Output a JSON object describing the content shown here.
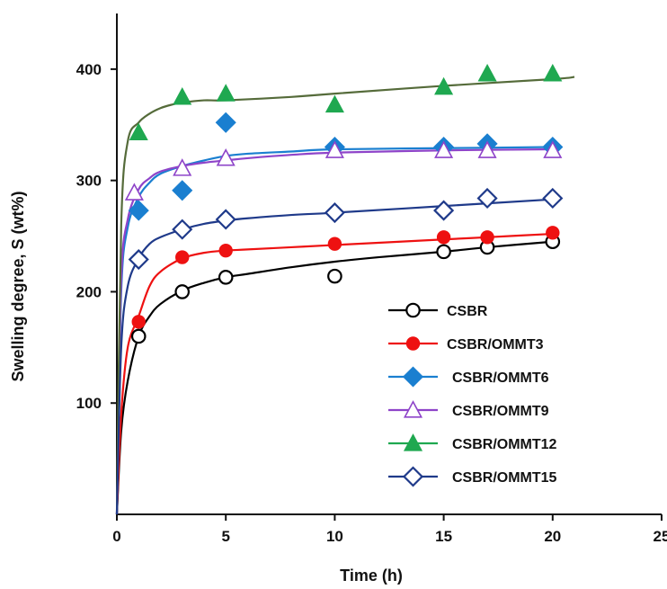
{
  "chart_data": {
    "type": "scatter",
    "title": "",
    "xlabel": "Time (h)",
    "ylabel": "Swelling degree, S (wt%)",
    "xlim": [
      0,
      25
    ],
    "ylim": [
      0,
      450
    ],
    "xticks": [
      "0",
      "5",
      "10",
      "15",
      "20",
      "25"
    ],
    "yticks": [
      "100",
      "200",
      "300",
      "400"
    ],
    "grid": false,
    "legend_position": "bottom-right",
    "series": [
      {
        "name": "CSBR",
        "marker": "open-circle",
        "color": "#000000",
        "x": [
          1,
          3,
          5,
          10,
          15,
          17,
          20
        ],
        "y": [
          160,
          200,
          213,
          214,
          236,
          240,
          245
        ],
        "fit_x": [
          0,
          0.2,
          0.5,
          1,
          1.5,
          2,
          3,
          4,
          5,
          6,
          8,
          10,
          12,
          15,
          17,
          20
        ],
        "fit_y": [
          0,
          75,
          120,
          160,
          178,
          189,
          201,
          208,
          213,
          216,
          222,
          227,
          231,
          236,
          240,
          245
        ]
      },
      {
        "name": "CSBR/OMMT3",
        "marker": "filled-circle",
        "color": "#ee1111",
        "x": [
          1,
          3,
          5,
          10,
          15,
          17,
          20
        ],
        "y": [
          173,
          231,
          237,
          243,
          249,
          249,
          253
        ],
        "fit_x": [
          0,
          0.2,
          0.5,
          1,
          1.5,
          2,
          3,
          4,
          5,
          6,
          8,
          10,
          15,
          17,
          20
        ],
        "fit_y": [
          0,
          90,
          150,
          178,
          205,
          218,
          230,
          235,
          237,
          238,
          240,
          242,
          247,
          249,
          252
        ]
      },
      {
        "name": "CSBR/OMMT6",
        "marker": "filled-diamond",
        "color": "#1a7fd0",
        "x": [
          1,
          3,
          5,
          10,
          15,
          17,
          20
        ],
        "y": [
          273,
          291,
          352,
          330,
          330,
          333,
          330
        ],
        "fit_x": [
          0,
          0.2,
          0.5,
          1,
          1.5,
          2,
          3,
          4,
          5,
          6,
          8,
          10,
          15,
          20
        ],
        "fit_y": [
          0,
          200,
          258,
          285,
          298,
          306,
          313,
          318,
          322,
          324,
          326,
          328,
          329,
          330
        ]
      },
      {
        "name": "CSBR/OMMT9",
        "marker": "open-triangle",
        "color": "#8e44c9",
        "x": [
          0.8,
          3,
          5,
          10,
          15,
          17,
          20
        ],
        "y": [
          289,
          311,
          320,
          327,
          327,
          327,
          327
        ],
        "fit_x": [
          0,
          0.2,
          0.5,
          1,
          1.5,
          2,
          3,
          4,
          5,
          6,
          8,
          10,
          15,
          20
        ],
        "fit_y": [
          0,
          210,
          265,
          292,
          302,
          308,
          313,
          316,
          318,
          320,
          323,
          325,
          327,
          328
        ]
      },
      {
        "name": "CSBR/OMMT12",
        "marker": "filled-triangle",
        "color": "#1fa850",
        "line_color": "#556b3a",
        "x": [
          1,
          3,
          5,
          10,
          15,
          17,
          20
        ],
        "y": [
          343,
          375,
          378,
          368,
          384,
          396,
          396
        ],
        "fit_x": [
          0,
          0.2,
          0.5,
          1,
          1.5,
          2,
          2.5,
          3,
          4,
          5,
          8,
          10,
          15,
          20,
          21
        ],
        "fit_y": [
          0,
          260,
          335,
          352,
          360,
          365,
          368,
          370,
          372,
          372,
          375,
          378,
          385,
          391,
          393
        ]
      },
      {
        "name": "CSBR/OMMT15",
        "marker": "open-diamond",
        "color": "#1f3a8a",
        "x": [
          1,
          3,
          5,
          10,
          15,
          17,
          20
        ],
        "y": [
          229,
          256,
          265,
          271,
          273,
          284,
          284
        ],
        "fit_x": [
          0,
          0.2,
          0.5,
          1,
          1.5,
          2,
          3,
          4,
          5,
          6,
          8,
          10,
          15,
          20
        ],
        "fit_y": [
          0,
          150,
          205,
          230,
          243,
          249,
          256,
          261,
          264,
          266,
          269,
          271,
          277,
          283
        ]
      }
    ]
  }
}
